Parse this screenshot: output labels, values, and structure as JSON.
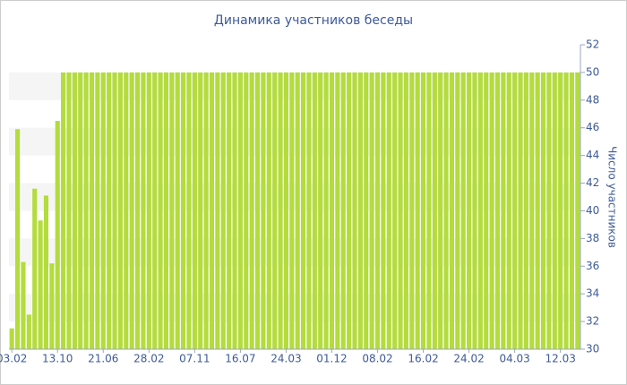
{
  "chart_data": {
    "type": "bar",
    "title": "Динамика участников беседы",
    "y_axis_label": "Число участников",
    "categories": [
      "03.02",
      null,
      null,
      null,
      null,
      null,
      null,
      null,
      "13.10",
      null,
      null,
      null,
      null,
      null,
      null,
      null,
      "21.06",
      null,
      null,
      null,
      null,
      null,
      null,
      null,
      "28.02",
      null,
      null,
      null,
      null,
      null,
      null,
      null,
      "07.11",
      null,
      null,
      null,
      null,
      null,
      null,
      null,
      "16.07",
      null,
      null,
      null,
      null,
      null,
      null,
      null,
      "24.03",
      null,
      null,
      null,
      null,
      null,
      null,
      null,
      "01.12",
      null,
      null,
      null,
      null,
      null,
      null,
      null,
      "08.02",
      null,
      null,
      null,
      null,
      null,
      null,
      null,
      "16.02",
      null,
      null,
      null,
      null,
      null,
      null,
      null,
      "24.02",
      null,
      null,
      null,
      null,
      null,
      null,
      null,
      "04.03",
      null,
      null,
      null,
      null,
      null,
      null,
      null,
      "12.03",
      null,
      null,
      null
    ],
    "values": [
      31.5,
      45.9,
      36.3,
      32.5,
      41.6,
      39.3,
      41.1,
      36.2,
      46.5,
      50,
      50,
      50,
      50,
      50,
      50,
      50,
      50,
      50,
      50,
      50,
      50,
      50,
      50,
      50,
      50,
      50,
      50,
      50,
      50,
      50,
      50,
      50,
      50,
      50,
      50,
      50,
      50,
      50,
      50,
      50,
      50,
      50,
      50,
      50,
      50,
      50,
      50,
      50,
      50,
      50,
      50,
      50,
      50,
      50,
      50,
      50,
      50,
      50,
      50,
      50,
      50,
      50,
      50,
      50,
      50,
      50,
      50,
      50,
      50,
      50,
      50,
      50,
      50,
      50,
      50,
      50,
      50,
      50,
      50,
      50,
      50,
      50,
      50,
      50,
      50,
      50,
      50,
      50,
      50,
      50,
      50,
      50,
      50,
      50,
      50,
      50,
      50,
      50,
      50,
      50
    ],
    "color": "#b3dc3c",
    "ylim": [
      30,
      52
    ],
    "yticks": [
      30,
      32,
      34,
      36,
      38,
      40,
      42,
      44,
      46,
      48,
      50,
      52
    ],
    "grid": true
  }
}
